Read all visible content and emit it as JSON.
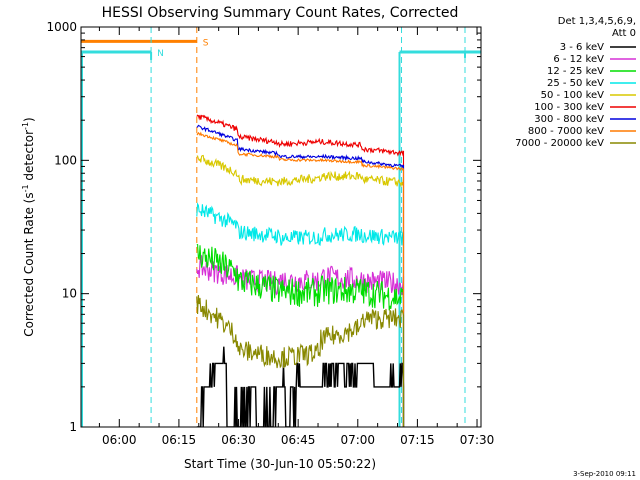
{
  "chart_data": {
    "type": "line",
    "title": "HESSI Observing Summary Count Rates, Corrected",
    "xlabel": "Start Time (30-Jun-10 05:50:22)",
    "ylabel_main": "Corrected Count Rate (s",
    "ylabel_sup1": "-1",
    "ylabel_mid": " detector",
    "ylabel_sup2": "-1",
    "ylabel_end": ")",
    "footer": "3-Sep-2010 09:11",
    "yscale": "log",
    "xlim": [
      "05:50:22",
      "07:31:00"
    ],
    "ylim": [
      1,
      1000
    ],
    "x_ticks": [
      "06:00",
      "06:15",
      "06:30",
      "06:45",
      "07:00",
      "07:15",
      "07:30"
    ],
    "y_ticks": [
      "1",
      "10",
      "100",
      "1000"
    ],
    "legend_header": [
      "Det 1,3,4,5,6,9,",
      "Att 0"
    ],
    "legend_position": "right",
    "markers": [
      {
        "label": "N",
        "color": "#33dddd",
        "time": "06:08:00"
      },
      {
        "label": "S",
        "color": "#ff8000",
        "time": "06:19:30"
      }
    ],
    "night_intervals": [
      [
        "05:50:22",
        "06:08:00"
      ],
      [
        "07:10:30",
        "07:31:00"
      ]
    ],
    "night_level": 650,
    "saa_interval": [
      "05:50:22",
      "06:19:30"
    ],
    "saa_level": 780,
    "attenuator_time": "07:11:30",
    "series": [
      {
        "name": "3 - 6 keV",
        "color": "#000000",
        "values": [
          [
            1.05,
            3.5
          ],
          [
            0.95,
            1.9
          ],
          [
            0.95,
            1.9
          ],
          [
            1.3,
            2.2
          ],
          [
            2.2,
            2.9
          ],
          [
            2.5,
            3.0
          ],
          [
            1.7,
            2.7
          ]
        ]
      },
      {
        "name": "6 - 12 keV",
        "color": "#d630d6",
        "values": [
          [
            16,
            13.2
          ],
          [
            12.8,
            12.0
          ],
          [
            12.6,
            12.5
          ],
          [
            13.4,
            12.7
          ],
          [
            12.5,
            11.8
          ]
        ]
      },
      {
        "name": "12 - 25 keV",
        "color": "#00dd00",
        "values": [
          [
            20,
            14
          ],
          [
            12.5,
            10.4
          ],
          [
            10.3,
            10.2
          ],
          [
            10.6,
            10.5
          ],
          [
            10.4,
            9.2
          ]
        ]
      },
      {
        "name": "25 - 50 keV",
        "color": "#00e8e8",
        "values": [
          [
            43,
            32
          ],
          [
            29,
            27
          ],
          [
            26,
            26.5
          ],
          [
            27.5,
            28
          ],
          [
            27.5,
            26
          ]
        ]
      },
      {
        "name": "50 - 100 keV",
        "color": "#d8c800",
        "values": [
          [
            105,
            80
          ],
          [
            72,
            69
          ],
          [
            69,
            74
          ],
          [
            76,
            76
          ],
          [
            72,
            68
          ]
        ]
      },
      {
        "name": "100 - 300 keV",
        "color": "#ee0000",
        "values": [
          [
            215,
            170
          ],
          [
            150,
            136
          ],
          [
            132,
            138
          ],
          [
            138,
            130
          ],
          [
            122,
            113
          ]
        ]
      },
      {
        "name": "300 - 800 keV",
        "color": "#0000dd",
        "values": [
          [
            180,
            140
          ],
          [
            122,
            112
          ],
          [
            107,
            106
          ],
          [
            107,
            103
          ],
          [
            98,
            90
          ]
        ]
      },
      {
        "name": "800 - 7000 keV",
        "color": "#ff7a00",
        "values": [
          [
            160,
            128
          ],
          [
            112,
            106
          ],
          [
            101,
            100
          ],
          [
            100,
            97
          ],
          [
            92,
            86
          ]
        ]
      },
      {
        "name": "7000 - 20000 keV",
        "color": "#888800",
        "values": [
          [
            8.5,
            4.6
          ],
          [
            3.8,
            3.3
          ],
          [
            3.3,
            3.6
          ],
          [
            4.5,
            5.6
          ],
          [
            6.5,
            6.5
          ]
        ]
      }
    ]
  }
}
